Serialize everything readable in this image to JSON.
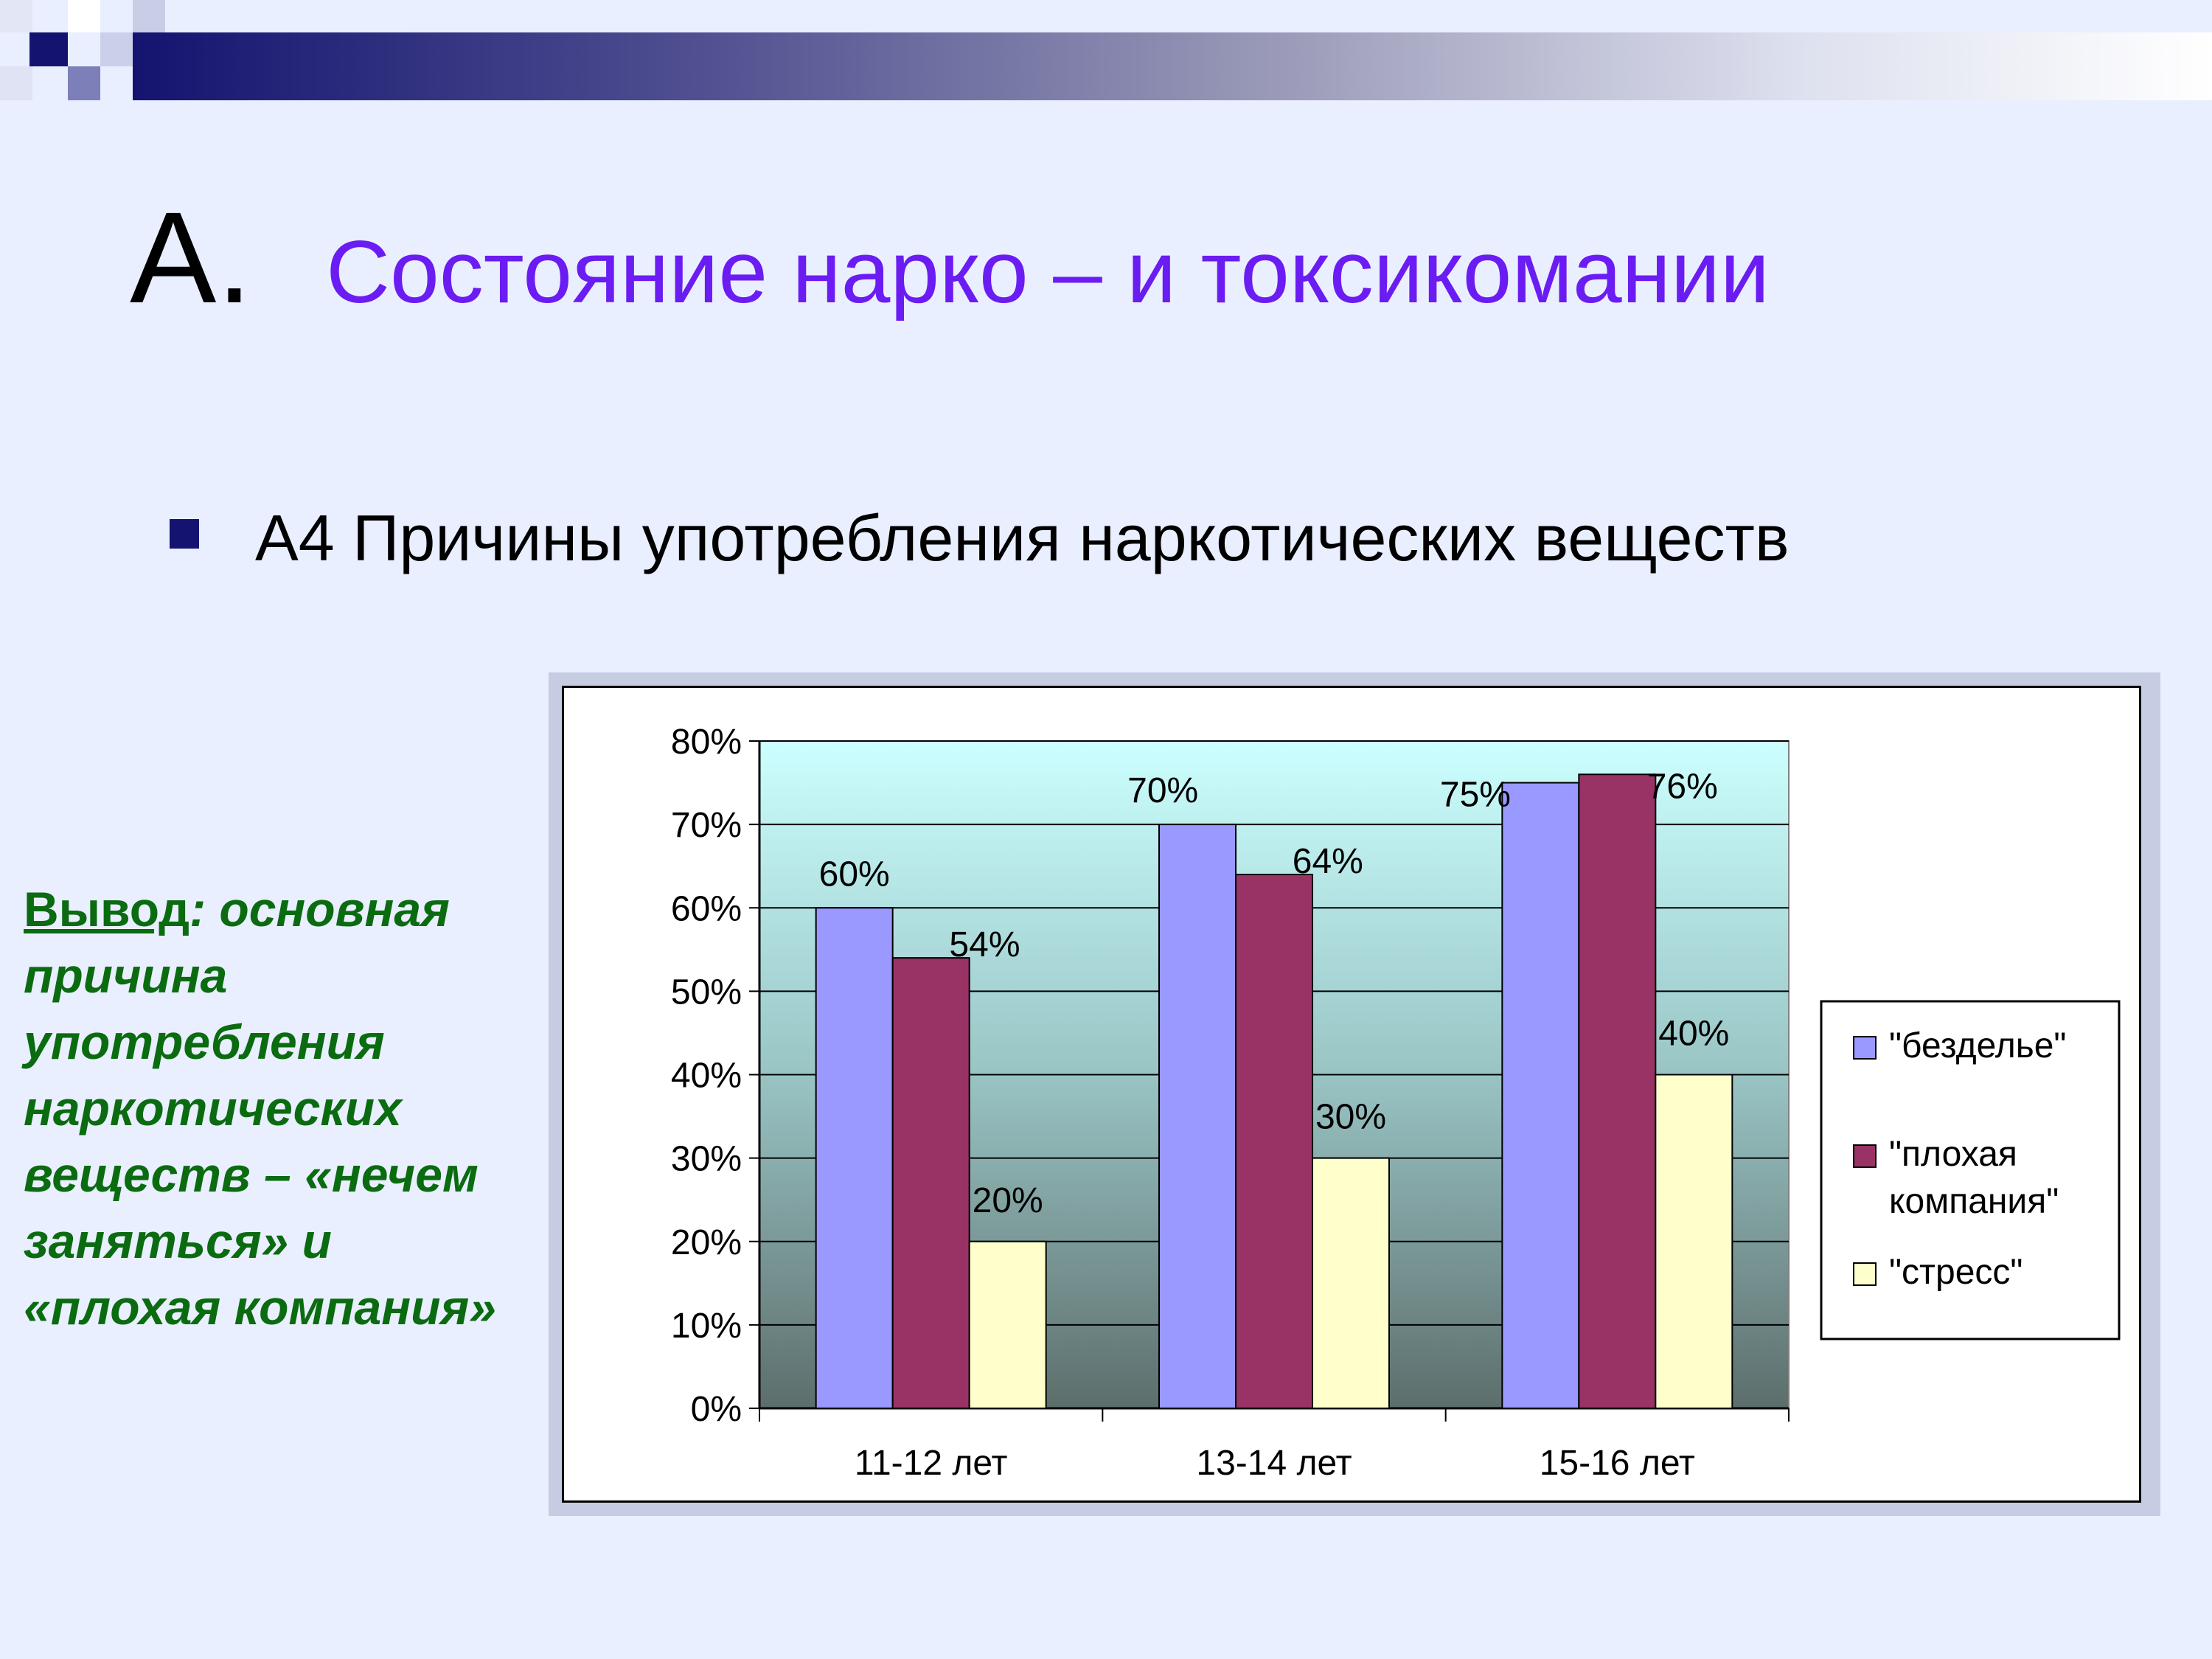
{
  "slide": {
    "title_letter": "А.",
    "title_text": "Состояние нарко – и токсикомании",
    "bullet": "А4 Причины употребления наркотических веществ",
    "conclusion": {
      "label": "Вывод",
      "text": ": основная причина употребления наркотических веществ – «нечем заняться» и «плохая компания»"
    }
  },
  "colors": {
    "title": "#6b1cf2",
    "conclusion": "#0b6b10",
    "series": [
      "#9999ff",
      "#993366",
      "#ffffcc"
    ]
  },
  "chart_data": {
    "type": "bar",
    "categories": [
      "11-12 лет",
      "13-14 лет",
      "15-16 лет"
    ],
    "series": [
      {
        "name": "\"бездельe\"",
        "values": [
          60,
          70,
          75
        ],
        "labels": [
          "60%",
          "70%",
          "75%"
        ]
      },
      {
        "name": "\"плохая компания\"",
        "values": [
          54,
          64,
          76
        ],
        "labels": [
          "54%",
          "64%",
          "76%"
        ]
      },
      {
        "name": "\"стресс\"",
        "values": [
          20,
          30,
          40
        ],
        "labels": [
          "20%",
          "30%",
          "40%"
        ]
      }
    ],
    "yticks": [
      "0%",
      "10%",
      "20%",
      "30%",
      "40%",
      "50%",
      "60%",
      "70%",
      "80%"
    ],
    "ylim": [
      0,
      80
    ],
    "grid": true,
    "legend": "right",
    "plot_background": "gradient cyan to dark gray"
  }
}
